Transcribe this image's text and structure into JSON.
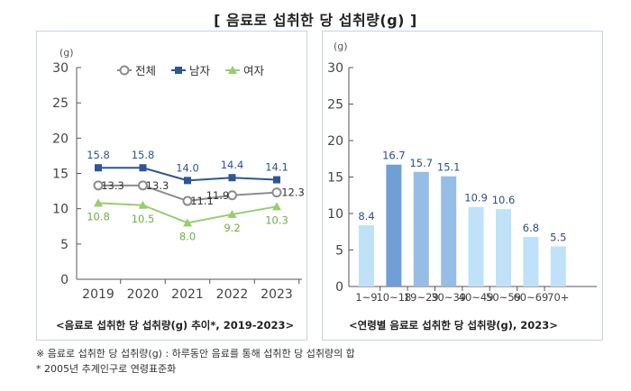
{
  "title": "[ 음료로 섭취한 당 섭취량(g) ]",
  "chart_data": [
    {
      "type": "line",
      "unit": "(g)",
      "x": [
        "2019",
        "2020",
        "2021",
        "2022",
        "2023"
      ],
      "ylim": [
        0,
        30
      ],
      "yticks": [
        "0",
        "5",
        "10",
        "15",
        "20",
        "25",
        "30"
      ],
      "legend_position": "top",
      "series": [
        {
          "name": "전체",
          "values": [
            13.3,
            13.3,
            11.1,
            11.9,
            12.3
          ],
          "labels": [
            "13.3",
            "13.3",
            "11.1",
            "11.9",
            "12.3"
          ],
          "color": "#8c8c8c",
          "marker": "circle"
        },
        {
          "name": "남자",
          "values": [
            15.8,
            15.8,
            14.0,
            14.4,
            14.1
          ],
          "labels": [
            "15.8",
            "15.8",
            "14.0",
            "14.4",
            "14.1"
          ],
          "color": "#2e5594",
          "marker": "square"
        },
        {
          "name": "여자",
          "values": [
            10.8,
            10.5,
            8.0,
            9.2,
            10.3
          ],
          "labels": [
            "10.8",
            "10.5",
            "8.0",
            "9.2",
            "10.3"
          ],
          "color": "#98cd6e",
          "marker": "triangle"
        }
      ],
      "caption": "<음료로 섭취한 당 섭취량(g) 추이*, 2019-2023>"
    },
    {
      "type": "bar",
      "unit": "(g)",
      "categories": [
        "1~9",
        "10~18",
        "19~29",
        "30~39",
        "40~49",
        "50~59",
        "60~69",
        "70+"
      ],
      "values": [
        8.4,
        16.7,
        15.7,
        15.1,
        10.9,
        10.6,
        6.8,
        5.5
      ],
      "labels": [
        "8.4",
        "16.7",
        "15.7",
        "15.1",
        "10.9",
        "10.6",
        "6.8",
        "5.5"
      ],
      "colors": [
        "#bfe2f8",
        "#6f9fd4",
        "#95bde6",
        "#95bde6",
        "#bfe2f8",
        "#bfe2f8",
        "#bfe2f8",
        "#bfe2f8"
      ],
      "label_color": "#2d4f86",
      "ylim": [
        0,
        30
      ],
      "yticks": [
        "0",
        "5",
        "10",
        "15",
        "20",
        "25",
        "30"
      ],
      "caption": "<연령별 음료로 섭취한 당 섭취량(g), 2023>"
    }
  ],
  "footnotes": [
    "※ 음료로 섭취한 당 섭취량(g) : 하루동안 음료를 통해 섭취한 당 섭취량의 합",
    "* 2005년 추계인구로 연령표준화"
  ]
}
